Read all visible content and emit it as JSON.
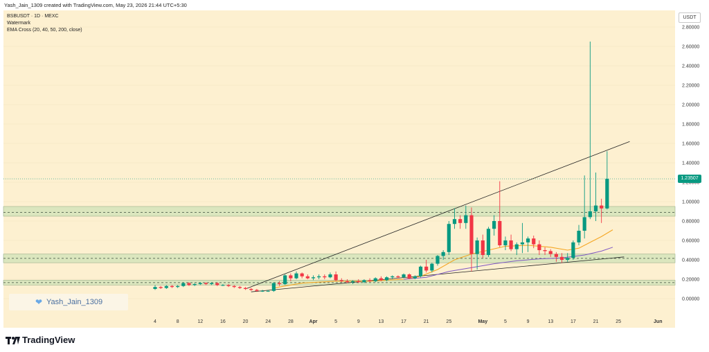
{
  "caption": "Yash_Jain_1309 created with TradingView.com, May 23, 2026 21:44 UTC+5:30",
  "legend": {
    "symbol": "BSBUSDT · 1D · MEXC",
    "watermark_label": "Watermark",
    "indicator": "EMA Cross (20, 40, 50, 200, close)"
  },
  "watermark_text": "Yash_Jain_1309",
  "brand": "TradingView",
  "currency_button": "USDT",
  "last_price_label": "1.23507",
  "colors": {
    "up": "#089981",
    "down": "#f23645",
    "ema_fast": "#f5a623",
    "ema_slow": "#7e57c2",
    "zone_fill": "#cfe3b8",
    "background": "#fdf0d0",
    "badge": "#089981"
  },
  "chart_data": {
    "type": "candlestick",
    "title": "",
    "xlabel": "",
    "ylabel": "",
    "ylim": [
      -0.08,
      2.88
    ],
    "y_ticks": [
      "0.00000",
      "0.20000",
      "0.40000",
      "0.60000",
      "0.80000",
      "1.00000",
      "1.20000",
      "1.40000",
      "1.60000",
      "1.80000",
      "2.00000",
      "2.20000",
      "2.40000",
      "2.60000",
      "2.80000"
    ],
    "y_tick_values": [
      0,
      0.2,
      0.4,
      0.6,
      0.8,
      1.0,
      1.2,
      1.4,
      1.6,
      1.8,
      2.0,
      2.2,
      2.4,
      2.6,
      2.8
    ],
    "x_ticks": [
      {
        "label": "4",
        "day": 0
      },
      {
        "label": "8",
        "day": 4
      },
      {
        "label": "12",
        "day": 8
      },
      {
        "label": "16",
        "day": 12
      },
      {
        "label": "20",
        "day": 16
      },
      {
        "label": "24",
        "day": 20
      },
      {
        "label": "28",
        "day": 24
      },
      {
        "label": "Apr",
        "day": 28
      },
      {
        "label": "5",
        "day": 32
      },
      {
        "label": "9",
        "day": 36
      },
      {
        "label": "13",
        "day": 40
      },
      {
        "label": "17",
        "day": 44
      },
      {
        "label": "21",
        "day": 48
      },
      {
        "label": "25",
        "day": 52
      },
      {
        "label": "May",
        "day": 58
      },
      {
        "label": "5",
        "day": 62
      },
      {
        "label": "9",
        "day": 66
      },
      {
        "label": "13",
        "day": 70
      },
      {
        "label": "17",
        "day": 74
      },
      {
        "label": "21",
        "day": 78
      },
      {
        "label": "25",
        "day": 82
      },
      {
        "label": "Jun",
        "day": 89
      }
    ],
    "x_range_days": [
      -3,
      94
    ],
    "last_price": 1.23507,
    "support_zones": [
      {
        "low": 0.85,
        "high": 0.95,
        "mid": 0.89
      },
      {
        "low": 0.37,
        "high": 0.46,
        "mid": 0.415
      },
      {
        "low": 0.14,
        "high": 0.19,
        "mid": 0.165
      }
    ],
    "trendlines": [
      {
        "name": "upper",
        "from": {
          "day": 16,
          "price": 0.1
        },
        "to": {
          "day": 84,
          "price": 1.62
        }
      },
      {
        "name": "lower",
        "from": {
          "day": 17,
          "price": 0.07
        },
        "to": {
          "day": 83,
          "price": 0.43
        }
      }
    ],
    "candles": [
      {
        "d": 0,
        "o": 0.1,
        "h": 0.14,
        "l": 0.09,
        "c": 0.12
      },
      {
        "d": 1,
        "o": 0.12,
        "h": 0.13,
        "l": 0.1,
        "c": 0.11
      },
      {
        "d": 2,
        "o": 0.11,
        "h": 0.14,
        "l": 0.1,
        "c": 0.13
      },
      {
        "d": 3,
        "o": 0.13,
        "h": 0.14,
        "l": 0.11,
        "c": 0.12
      },
      {
        "d": 4,
        "o": 0.12,
        "h": 0.14,
        "l": 0.11,
        "c": 0.13
      },
      {
        "d": 5,
        "o": 0.13,
        "h": 0.17,
        "l": 0.12,
        "c": 0.16
      },
      {
        "d": 6,
        "o": 0.16,
        "h": 0.17,
        "l": 0.13,
        "c": 0.14
      },
      {
        "d": 7,
        "o": 0.14,
        "h": 0.16,
        "l": 0.13,
        "c": 0.15
      },
      {
        "d": 8,
        "o": 0.15,
        "h": 0.17,
        "l": 0.14,
        "c": 0.16
      },
      {
        "d": 9,
        "o": 0.16,
        "h": 0.17,
        "l": 0.14,
        "c": 0.15
      },
      {
        "d": 10,
        "o": 0.15,
        "h": 0.17,
        "l": 0.14,
        "c": 0.16
      },
      {
        "d": 11,
        "o": 0.16,
        "h": 0.17,
        "l": 0.13,
        "c": 0.14
      },
      {
        "d": 12,
        "o": 0.14,
        "h": 0.15,
        "l": 0.13,
        "c": 0.14
      },
      {
        "d": 13,
        "o": 0.14,
        "h": 0.15,
        "l": 0.12,
        "c": 0.13
      },
      {
        "d": 14,
        "o": 0.13,
        "h": 0.14,
        "l": 0.11,
        "c": 0.12
      },
      {
        "d": 15,
        "o": 0.12,
        "h": 0.13,
        "l": 0.1,
        "c": 0.11
      },
      {
        "d": 16,
        "o": 0.11,
        "h": 0.12,
        "l": 0.09,
        "c": 0.1
      },
      {
        "d": 17,
        "o": 0.1,
        "h": 0.11,
        "l": 0.08,
        "c": 0.09
      },
      {
        "d": 18,
        "o": 0.09,
        "h": 0.1,
        "l": 0.07,
        "c": 0.08
      },
      {
        "d": 19,
        "o": 0.08,
        "h": 0.09,
        "l": 0.07,
        "c": 0.08
      },
      {
        "d": 20,
        "o": 0.08,
        "h": 0.09,
        "l": 0.07,
        "c": 0.08
      },
      {
        "d": 21,
        "o": 0.08,
        "h": 0.17,
        "l": 0.07,
        "c": 0.16
      },
      {
        "d": 22,
        "o": 0.16,
        "h": 0.18,
        "l": 0.13,
        "c": 0.15
      },
      {
        "d": 23,
        "o": 0.15,
        "h": 0.25,
        "l": 0.14,
        "c": 0.24
      },
      {
        "d": 24,
        "o": 0.24,
        "h": 0.26,
        "l": 0.18,
        "c": 0.21
      },
      {
        "d": 25,
        "o": 0.21,
        "h": 0.28,
        "l": 0.2,
        "c": 0.26
      },
      {
        "d": 26,
        "o": 0.26,
        "h": 0.27,
        "l": 0.21,
        "c": 0.23
      },
      {
        "d": 27,
        "o": 0.23,
        "h": 0.25,
        "l": 0.2,
        "c": 0.21
      },
      {
        "d": 28,
        "o": 0.21,
        "h": 0.24,
        "l": 0.19,
        "c": 0.22
      },
      {
        "d": 29,
        "o": 0.22,
        "h": 0.25,
        "l": 0.2,
        "c": 0.23
      },
      {
        "d": 30,
        "o": 0.23,
        "h": 0.25,
        "l": 0.2,
        "c": 0.22
      },
      {
        "d": 31,
        "o": 0.22,
        "h": 0.27,
        "l": 0.21,
        "c": 0.25
      },
      {
        "d": 32,
        "o": 0.25,
        "h": 0.28,
        "l": 0.18,
        "c": 0.19
      },
      {
        "d": 33,
        "o": 0.19,
        "h": 0.21,
        "l": 0.17,
        "c": 0.18
      },
      {
        "d": 34,
        "o": 0.18,
        "h": 0.2,
        "l": 0.16,
        "c": 0.17
      },
      {
        "d": 35,
        "o": 0.17,
        "h": 0.19,
        "l": 0.15,
        "c": 0.18
      },
      {
        "d": 36,
        "o": 0.18,
        "h": 0.2,
        "l": 0.16,
        "c": 0.17
      },
      {
        "d": 37,
        "o": 0.17,
        "h": 0.2,
        "l": 0.16,
        "c": 0.19
      },
      {
        "d": 38,
        "o": 0.19,
        "h": 0.21,
        "l": 0.17,
        "c": 0.18
      },
      {
        "d": 39,
        "o": 0.18,
        "h": 0.22,
        "l": 0.17,
        "c": 0.21
      },
      {
        "d": 40,
        "o": 0.21,
        "h": 0.23,
        "l": 0.18,
        "c": 0.19
      },
      {
        "d": 41,
        "o": 0.19,
        "h": 0.23,
        "l": 0.18,
        "c": 0.22
      },
      {
        "d": 42,
        "o": 0.22,
        "h": 0.24,
        "l": 0.2,
        "c": 0.23
      },
      {
        "d": 43,
        "o": 0.23,
        "h": 0.24,
        "l": 0.21,
        "c": 0.22
      },
      {
        "d": 44,
        "o": 0.22,
        "h": 0.26,
        "l": 0.21,
        "c": 0.25
      },
      {
        "d": 45,
        "o": 0.25,
        "h": 0.26,
        "l": 0.2,
        "c": 0.21
      },
      {
        "d": 46,
        "o": 0.21,
        "h": 0.24,
        "l": 0.2,
        "c": 0.23
      },
      {
        "d": 47,
        "o": 0.23,
        "h": 0.34,
        "l": 0.22,
        "c": 0.33
      },
      {
        "d": 48,
        "o": 0.33,
        "h": 0.4,
        "l": 0.27,
        "c": 0.29
      },
      {
        "d": 49,
        "o": 0.29,
        "h": 0.37,
        "l": 0.27,
        "c": 0.36
      },
      {
        "d": 50,
        "o": 0.36,
        "h": 0.45,
        "l": 0.34,
        "c": 0.44
      },
      {
        "d": 51,
        "o": 0.44,
        "h": 0.5,
        "l": 0.4,
        "c": 0.48
      },
      {
        "d": 52,
        "o": 0.48,
        "h": 0.8,
        "l": 0.45,
        "c": 0.77
      },
      {
        "d": 53,
        "o": 0.77,
        "h": 0.93,
        "l": 0.72,
        "c": 0.82
      },
      {
        "d": 54,
        "o": 0.82,
        "h": 0.86,
        "l": 0.72,
        "c": 0.78
      },
      {
        "d": 55,
        "o": 0.78,
        "h": 0.96,
        "l": 0.72,
        "c": 0.86
      },
      {
        "d": 56,
        "o": 0.86,
        "h": 0.94,
        "l": 0.28,
        "c": 0.46
      },
      {
        "d": 57,
        "o": 0.46,
        "h": 0.63,
        "l": 0.3,
        "c": 0.6
      },
      {
        "d": 58,
        "o": 0.6,
        "h": 0.66,
        "l": 0.42,
        "c": 0.45
      },
      {
        "d": 59,
        "o": 0.45,
        "h": 0.74,
        "l": 0.43,
        "c": 0.72
      },
      {
        "d": 60,
        "o": 0.72,
        "h": 0.86,
        "l": 0.65,
        "c": 0.8
      },
      {
        "d": 61,
        "o": 0.8,
        "h": 1.21,
        "l": 0.53,
        "c": 0.55
      },
      {
        "d": 62,
        "o": 0.55,
        "h": 0.64,
        "l": 0.5,
        "c": 0.6
      },
      {
        "d": 63,
        "o": 0.6,
        "h": 0.66,
        "l": 0.49,
        "c": 0.51
      },
      {
        "d": 64,
        "o": 0.51,
        "h": 0.58,
        "l": 0.45,
        "c": 0.56
      },
      {
        "d": 65,
        "o": 0.56,
        "h": 0.78,
        "l": 0.47,
        "c": 0.58
      },
      {
        "d": 66,
        "o": 0.58,
        "h": 0.64,
        "l": 0.48,
        "c": 0.62
      },
      {
        "d": 67,
        "o": 0.62,
        "h": 0.65,
        "l": 0.52,
        "c": 0.56
      },
      {
        "d": 68,
        "o": 0.56,
        "h": 0.6,
        "l": 0.45,
        "c": 0.5
      },
      {
        "d": 69,
        "o": 0.5,
        "h": 0.53,
        "l": 0.45,
        "c": 0.49
      },
      {
        "d": 70,
        "o": 0.49,
        "h": 0.51,
        "l": 0.43,
        "c": 0.46
      },
      {
        "d": 71,
        "o": 0.46,
        "h": 0.48,
        "l": 0.38,
        "c": 0.43
      },
      {
        "d": 72,
        "o": 0.43,
        "h": 0.47,
        "l": 0.37,
        "c": 0.4
      },
      {
        "d": 73,
        "o": 0.4,
        "h": 0.47,
        "l": 0.38,
        "c": 0.42
      },
      {
        "d": 74,
        "o": 0.42,
        "h": 0.6,
        "l": 0.4,
        "c": 0.58
      },
      {
        "d": 75,
        "o": 0.58,
        "h": 0.76,
        "l": 0.55,
        "c": 0.7
      },
      {
        "d": 76,
        "o": 0.7,
        "h": 1.27,
        "l": 0.62,
        "c": 0.84
      },
      {
        "d": 77,
        "o": 0.84,
        "h": 2.65,
        "l": 0.82,
        "c": 0.9
      },
      {
        "d": 78,
        "o": 0.9,
        "h": 1.3,
        "l": 0.8,
        "c": 0.96
      },
      {
        "d": 79,
        "o": 0.96,
        "h": 1.03,
        "l": 0.78,
        "c": 0.93
      },
      {
        "d": 80,
        "o": 0.93,
        "h": 1.52,
        "l": 0.92,
        "c": 1.23507
      }
    ],
    "ema_fast": [
      {
        "d": 21,
        "v": 0.11
      },
      {
        "d": 26,
        "v": 0.16
      },
      {
        "d": 32,
        "v": 0.18
      },
      {
        "d": 38,
        "v": 0.18
      },
      {
        "d": 44,
        "v": 0.2
      },
      {
        "d": 47,
        "v": 0.23
      },
      {
        "d": 50,
        "v": 0.3
      },
      {
        "d": 53,
        "v": 0.4
      },
      {
        "d": 56,
        "v": 0.46
      },
      {
        "d": 59,
        "v": 0.5
      },
      {
        "d": 62,
        "v": 0.54
      },
      {
        "d": 66,
        "v": 0.55
      },
      {
        "d": 70,
        "v": 0.53
      },
      {
        "d": 73,
        "v": 0.5
      },
      {
        "d": 75,
        "v": 0.52
      },
      {
        "d": 77,
        "v": 0.58
      },
      {
        "d": 79,
        "v": 0.64
      },
      {
        "d": 81,
        "v": 0.71
      }
    ],
    "ema_slow": [
      {
        "d": 44,
        "v": 0.2
      },
      {
        "d": 48,
        "v": 0.22
      },
      {
        "d": 52,
        "v": 0.28
      },
      {
        "d": 56,
        "v": 0.32
      },
      {
        "d": 60,
        "v": 0.36
      },
      {
        "d": 64,
        "v": 0.39
      },
      {
        "d": 68,
        "v": 0.41
      },
      {
        "d": 72,
        "v": 0.42
      },
      {
        "d": 76,
        "v": 0.45
      },
      {
        "d": 79,
        "v": 0.49
      },
      {
        "d": 81,
        "v": 0.53
      }
    ]
  }
}
